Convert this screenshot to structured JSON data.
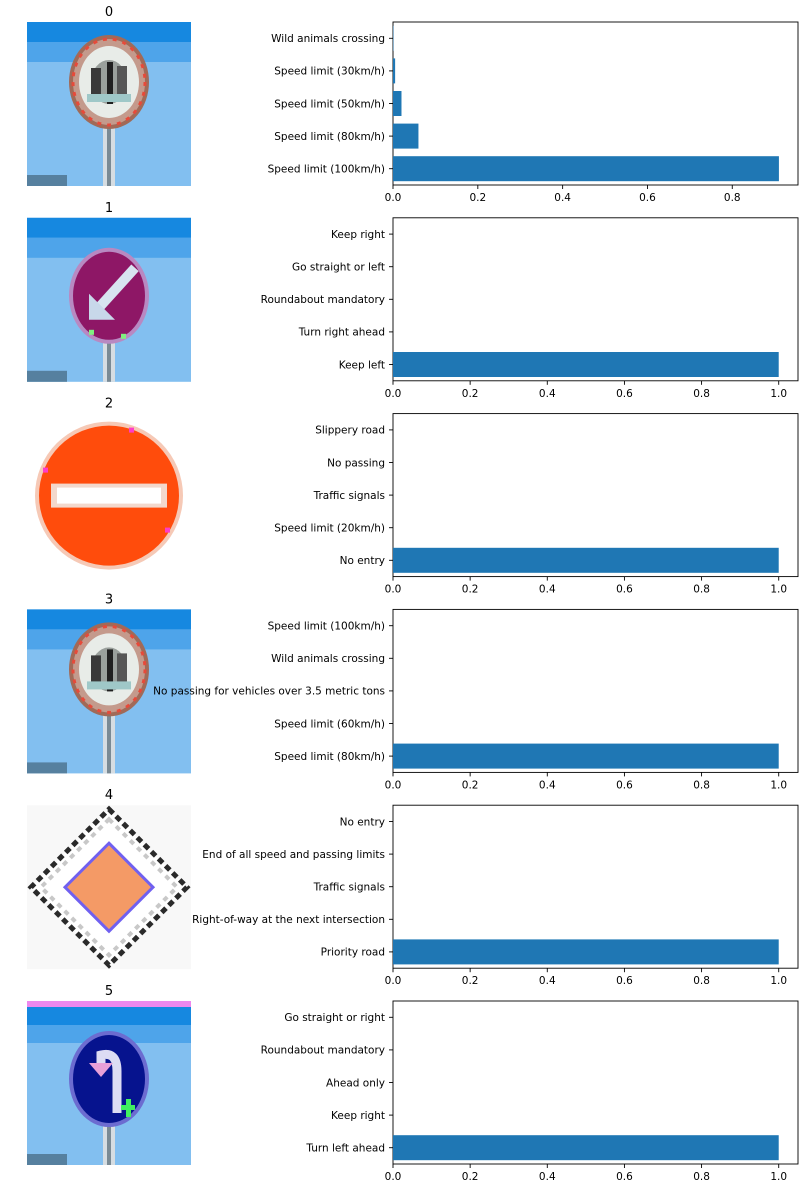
{
  "colors": {
    "bar": "#1f77b4"
  },
  "chart_data": [
    {
      "type": "bar",
      "orientation": "horizontal",
      "title": "0",
      "image": "speed-limit-sign",
      "categories": [
        "Wild animals crossing",
        "Speed limit (30km/h)",
        "Speed limit (50km/h)",
        "Speed limit (80km/h)",
        "Speed limit (100km/h)"
      ],
      "values": [
        0.001,
        0.005,
        0.02,
        0.06,
        0.91
      ],
      "xlim": [
        0,
        0.955
      ],
      "xticks": [
        "0.0",
        "0.2",
        "0.4",
        "0.6",
        "0.8"
      ],
      "xtick_values": [
        0,
        0.2,
        0.4,
        0.6,
        0.8
      ]
    },
    {
      "type": "bar",
      "orientation": "horizontal",
      "title": "1",
      "image": "keep-left-sign",
      "categories": [
        "Keep right",
        "Go straight or left",
        "Roundabout mandatory",
        "Turn right ahead",
        "Keep left"
      ],
      "values": [
        0,
        0,
        0,
        0,
        1.0
      ],
      "xlim": [
        0,
        1.05
      ],
      "xticks": [
        "0.0",
        "0.2",
        "0.4",
        "0.6",
        "0.8",
        "1.0"
      ],
      "xtick_values": [
        0,
        0.2,
        0.4,
        0.6,
        0.8,
        1.0
      ]
    },
    {
      "type": "bar",
      "orientation": "horizontal",
      "title": "2",
      "image": "no-entry-sign",
      "categories": [
        "Slippery road",
        "No passing",
        "Traffic signals",
        "Speed limit (20km/h)",
        "No entry"
      ],
      "values": [
        0,
        0,
        0,
        0,
        1.0
      ],
      "xlim": [
        0,
        1.05
      ],
      "xticks": [
        "0.0",
        "0.2",
        "0.4",
        "0.6",
        "0.8",
        "1.0"
      ],
      "xtick_values": [
        0,
        0.2,
        0.4,
        0.6,
        0.8,
        1.0
      ]
    },
    {
      "type": "bar",
      "orientation": "horizontal",
      "title": "3",
      "image": "speed-limit-sign",
      "categories": [
        "Speed limit (100km/h)",
        "Wild animals crossing",
        "No passing for vehicles over 3.5 metric tons",
        "Speed limit (60km/h)",
        "Speed limit (80km/h)"
      ],
      "values": [
        0,
        0,
        0,
        0,
        1.0
      ],
      "xlim": [
        0,
        1.05
      ],
      "xticks": [
        "0.0",
        "0.2",
        "0.4",
        "0.6",
        "0.8",
        "1.0"
      ],
      "xtick_values": [
        0,
        0.2,
        0.4,
        0.6,
        0.8,
        1.0
      ]
    },
    {
      "type": "bar",
      "orientation": "horizontal",
      "title": "4",
      "image": "priority-road-sign",
      "categories": [
        "No entry",
        "End of all speed and passing limits",
        "Traffic signals",
        "Right-of-way at the next intersection",
        "Priority road"
      ],
      "values": [
        0,
        0,
        0,
        0,
        1.0
      ],
      "xlim": [
        0,
        1.05
      ],
      "xticks": [
        "0.0",
        "0.2",
        "0.4",
        "0.6",
        "0.8",
        "1.0"
      ],
      "xtick_values": [
        0,
        0.2,
        0.4,
        0.6,
        0.8,
        1.0
      ]
    },
    {
      "type": "bar",
      "orientation": "horizontal",
      "title": "5",
      "image": "turn-left-ahead-sign",
      "categories": [
        "Go straight or right",
        "Roundabout mandatory",
        "Ahead only",
        "Keep right",
        "Turn left ahead"
      ],
      "values": [
        0,
        0,
        0,
        0,
        1.0
      ],
      "xlim": [
        0,
        1.05
      ],
      "xticks": [
        "0.0",
        "0.2",
        "0.4",
        "0.6",
        "0.8",
        "1.0"
      ],
      "xtick_values": [
        0,
        0.2,
        0.4,
        0.6,
        0.8,
        1.0
      ]
    }
  ]
}
